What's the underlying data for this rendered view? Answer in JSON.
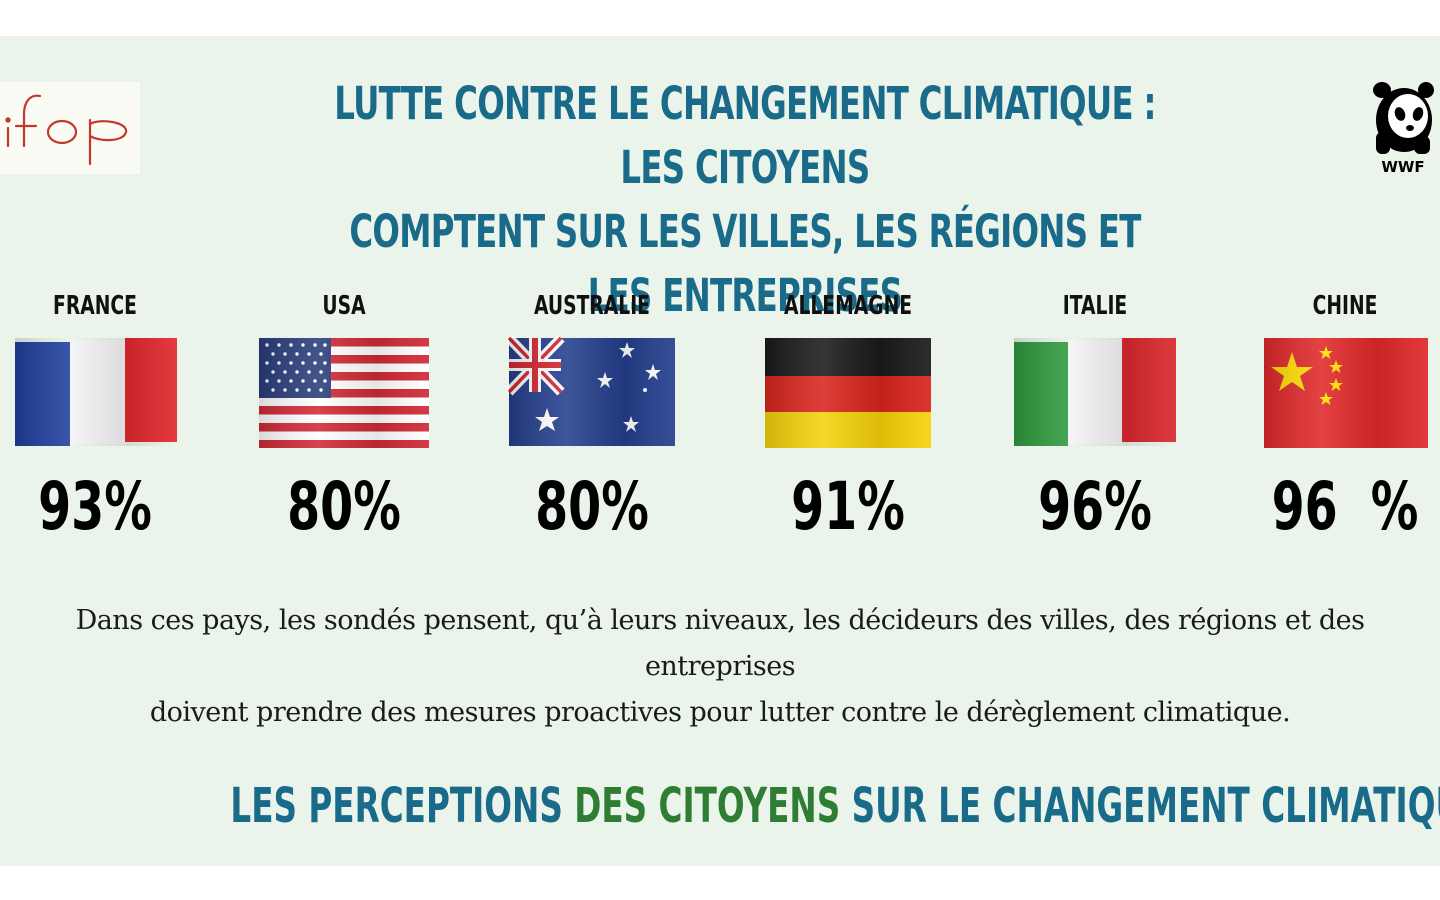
{
  "header": {
    "title_line1": "LUTTE CONTRE LE CHANGEMENT CLIMATIQUE : LES CITOYENS",
    "title_line2": "COMPTENT SUR LES VILLES, LES RÉGIONS ET LES ENTREPRISES",
    "left_logo": {
      "icon": "ifop-logo",
      "text": "ifop",
      "color": "#c0392b"
    },
    "right_logo": {
      "icon": "wwf-panda-logo",
      "text": "WWF"
    }
  },
  "countries": [
    {
      "name": "FRANCE",
      "flag_icon": "flag-france-icon",
      "value": "93%"
    },
    {
      "name": "USA",
      "flag_icon": "flag-usa-icon",
      "value": "80%"
    },
    {
      "name": "AUSTRALIE",
      "flag_icon": "flag-australia-icon",
      "value": "80%"
    },
    {
      "name": "ALLEMAGNE",
      "flag_icon": "flag-germany-icon",
      "value": "91%"
    },
    {
      "name": "ITALIE",
      "flag_icon": "flag-italy-icon",
      "value": "96%"
    },
    {
      "name": "CHINE",
      "flag_icon": "flag-china-icon",
      "value": "96  %"
    }
  ],
  "description": {
    "line1": "Dans ces pays, les sondés pensent, qu’à leurs niveaux, les décideurs des villes, des régions et des entreprises",
    "line2": "doivent prendre des mesures proactives pour lutter contre le dérèglement climatique."
  },
  "subtitle": {
    "part1": "LES PERCEPTIONS ",
    "part2": "DES CITOYENS",
    "part3": " SUR LE CHANGEMENT CLIMATIQUE"
  },
  "colors": {
    "title": "#1a6b8a",
    "accent_green": "#2e7d32",
    "panel_background": "#eaf4ea"
  }
}
